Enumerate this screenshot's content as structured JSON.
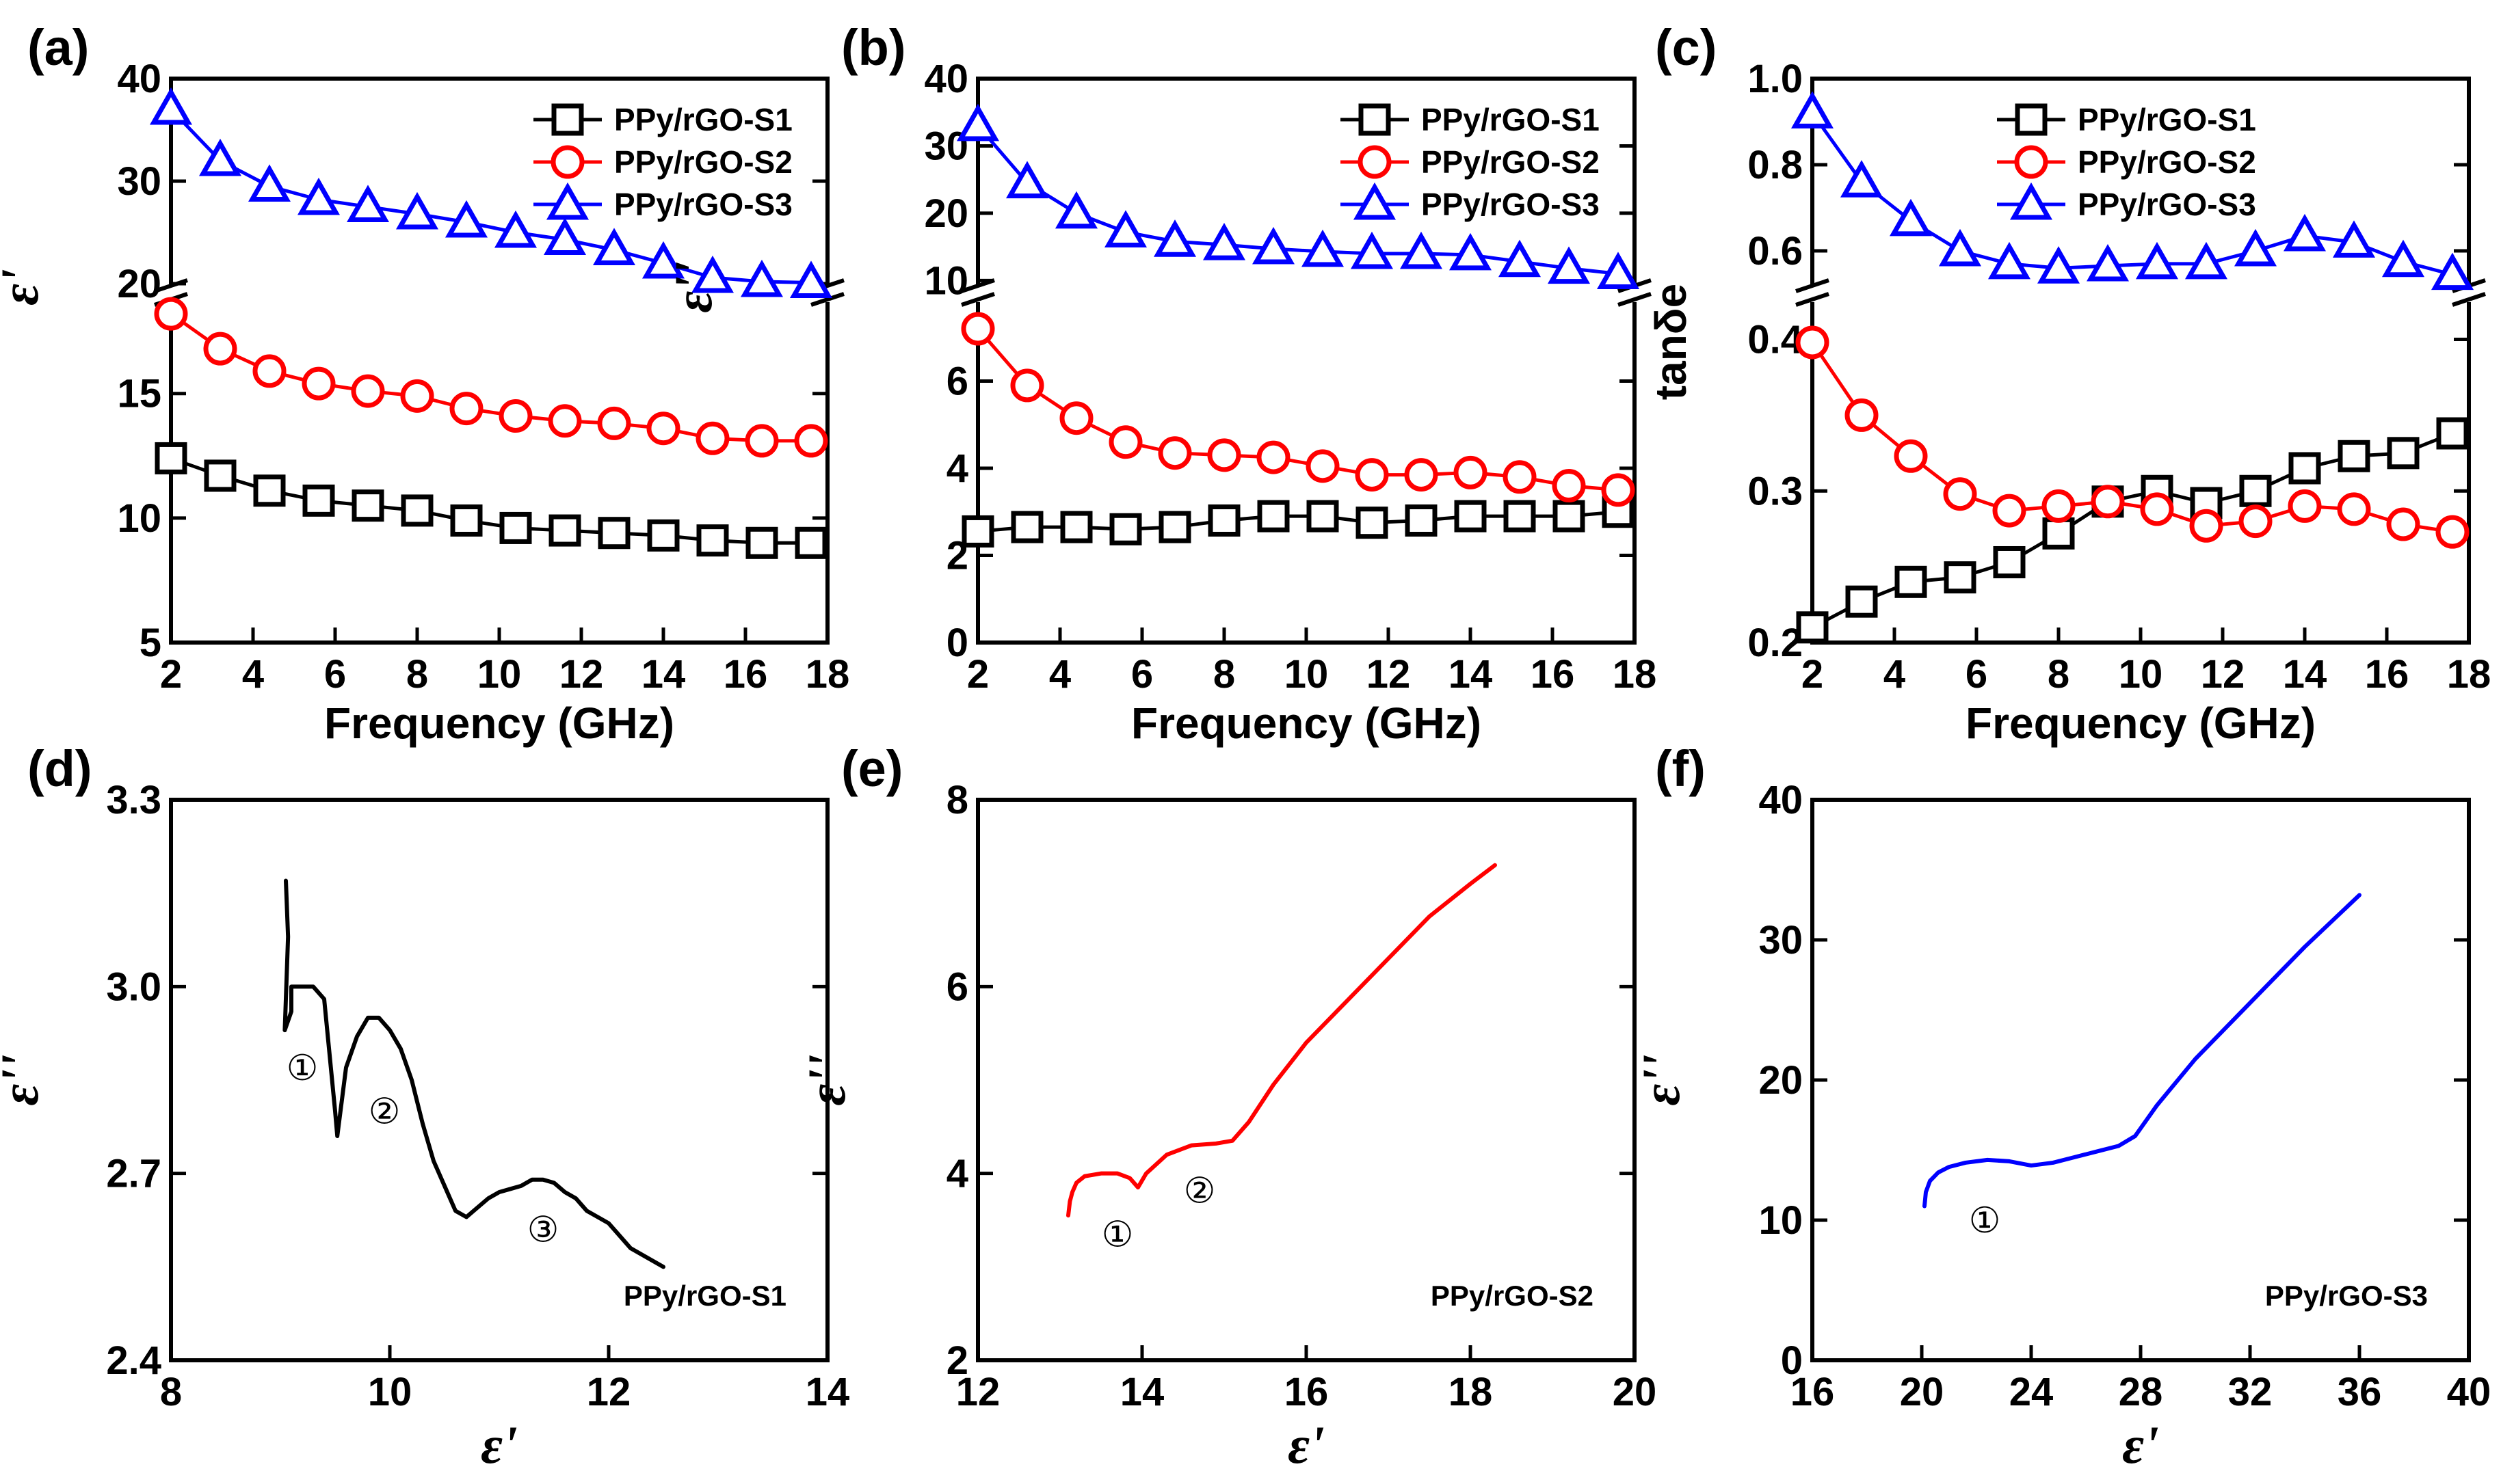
{
  "chart_data": [
    {
      "panel": "(a)",
      "type": "line",
      "xlabel": "Frequency (GHz)",
      "ylabel": "ε'",
      "xlim": [
        2,
        18
      ],
      "xticks": [
        "2",
        "4",
        "6",
        "8",
        "10",
        "12",
        "14",
        "16",
        "18"
      ],
      "y_break": true,
      "ylim_lower": [
        5,
        19
      ],
      "ylim_upper": [
        19,
        40
      ],
      "yticks": [
        "5",
        "10",
        "15",
        "20",
        "30",
        "40"
      ],
      "legend": [
        "PPy/rGO-S1",
        "PPy/rGO-S2",
        "PPy/rGO-S3"
      ],
      "series": [
        {
          "name": "PPy/rGO-S1",
          "color": "#000000",
          "marker": "square",
          "x": [
            2,
            3.2,
            4.4,
            5.6,
            6.8,
            8,
            9.2,
            10.4,
            11.6,
            12.8,
            14,
            15.2,
            16.4,
            17.6
          ],
          "values": [
            12.4,
            11.7,
            11.1,
            10.7,
            10.5,
            10.3,
            9.9,
            9.6,
            9.5,
            9.4,
            9.3,
            9.1,
            9.0,
            9.0
          ]
        },
        {
          "name": "PPy/rGO-S2",
          "color": "#ff0000",
          "marker": "circle",
          "x": [
            2,
            3.2,
            4.4,
            5.6,
            6.8,
            8,
            9.2,
            10.4,
            11.6,
            12.8,
            14,
            15.2,
            16.4,
            17.6
          ],
          "values": [
            18.2,
            16.8,
            15.9,
            15.4,
            15.1,
            14.9,
            14.4,
            14.1,
            13.9,
            13.8,
            13.6,
            13.2,
            13.1,
            13.1
          ]
        },
        {
          "name": "PPy/rGO-S3",
          "color": "#0000ff",
          "marker": "triangle",
          "x": [
            2,
            3.2,
            4.4,
            5.6,
            6.8,
            8,
            9.2,
            10.4,
            11.6,
            12.8,
            14,
            15.2,
            16.4,
            17.6
          ],
          "values": [
            37,
            32,
            29.5,
            28.2,
            27.5,
            26.8,
            26,
            25,
            24.3,
            23.3,
            22,
            20.6,
            20.2,
            20.1
          ]
        }
      ]
    },
    {
      "panel": "(b)",
      "type": "line",
      "xlabel": "Frequency (GHz)",
      "ylabel": "ε''",
      "xlim": [
        2,
        18
      ],
      "xticks": [
        "2",
        "4",
        "6",
        "8",
        "10",
        "12",
        "14",
        "16",
        "18"
      ],
      "y_break": true,
      "ylim_lower": [
        0,
        8
      ],
      "ylim_upper": [
        8,
        40
      ],
      "yticks": [
        "0",
        "2",
        "4",
        "6",
        "10",
        "20",
        "30",
        "40"
      ],
      "legend": [
        "PPy/rGO-S1",
        "PPy/rGO-S2",
        "PPy/rGO-S3"
      ],
      "series": [
        {
          "name": "PPy/rGO-S1",
          "color": "#000000",
          "marker": "square",
          "x": [
            2,
            3.2,
            4.4,
            5.6,
            6.8,
            8,
            9.2,
            10.4,
            11.6,
            12.8,
            14,
            15.2,
            16.4,
            17.6
          ],
          "values": [
            2.55,
            2.65,
            2.65,
            2.6,
            2.65,
            2.8,
            2.9,
            2.9,
            2.75,
            2.8,
            2.9,
            2.9,
            2.9,
            3.0
          ]
        },
        {
          "name": "PPy/rGO-S2",
          "color": "#ff0000",
          "marker": "circle",
          "x": [
            2,
            3.2,
            4.4,
            5.6,
            6.8,
            8,
            9.2,
            10.4,
            11.6,
            12.8,
            14,
            15.2,
            16.4,
            17.6
          ],
          "values": [
            7.2,
            5.9,
            5.15,
            4.6,
            4.35,
            4.3,
            4.25,
            4.05,
            3.85,
            3.85,
            3.9,
            3.8,
            3.6,
            3.5
          ]
        },
        {
          "name": "PPy/rGO-S3",
          "color": "#0000ff",
          "marker": "triangle",
          "x": [
            2,
            3.2,
            4.4,
            5.6,
            6.8,
            8,
            9.2,
            10.4,
            11.6,
            12.8,
            14,
            15.2,
            16.4,
            17.6
          ],
          "values": [
            33,
            24.5,
            20,
            17.2,
            15.8,
            15.3,
            14.7,
            14.3,
            14,
            14,
            13.8,
            12.8,
            11.8,
            11
          ]
        }
      ]
    },
    {
      "panel": "(c)",
      "type": "line",
      "xlabel": "Frequency (GHz)",
      "ylabel": "tanδe",
      "xlim": [
        2,
        18
      ],
      "xticks": [
        "2",
        "4",
        "6",
        "8",
        "10",
        "12",
        "14",
        "16",
        "18"
      ],
      "y_break": true,
      "ylim_lower": [
        0.2,
        0.43
      ],
      "ylim_upper": [
        0.5,
        1.0
      ],
      "yticks": [
        "0.2",
        "0.3",
        "0.4",
        "0.6",
        "0.8",
        "1.0"
      ],
      "legend": [
        "PPy/rGO-S1",
        "PPy/rGO-S2",
        "PPy/rGO-S3"
      ],
      "series": [
        {
          "name": "PPy/rGO-S1",
          "color": "#000000",
          "marker": "square",
          "x": [
            2,
            3.2,
            4.4,
            5.6,
            6.8,
            8,
            9.2,
            10.4,
            11.6,
            12.8,
            14,
            15.2,
            16.4,
            17.6
          ],
          "values": [
            0.21,
            0.227,
            0.24,
            0.243,
            0.253,
            0.272,
            0.293,
            0.3,
            0.292,
            0.3,
            0.315,
            0.323,
            0.325,
            0.338
          ]
        },
        {
          "name": "PPy/rGO-S2",
          "color": "#ff0000",
          "marker": "circle",
          "x": [
            2,
            3.2,
            4.4,
            5.6,
            6.8,
            8,
            9.2,
            10.4,
            11.6,
            12.8,
            14,
            15.2,
            16.4,
            17.6
          ],
          "values": [
            0.398,
            0.35,
            0.323,
            0.298,
            0.287,
            0.29,
            0.293,
            0.288,
            0.277,
            0.28,
            0.29,
            0.288,
            0.278,
            0.273
          ]
        },
        {
          "name": "PPy/rGO-S3",
          "color": "#0000ff",
          "marker": "triangle",
          "x": [
            2,
            3.2,
            4.4,
            5.6,
            6.8,
            8,
            9.2,
            10.4,
            11.6,
            12.8,
            14,
            15.2,
            16.4,
            17.6
          ],
          "values": [
            0.92,
            0.76,
            0.67,
            0.6,
            0.57,
            0.56,
            0.565,
            0.57,
            0.57,
            0.6,
            0.635,
            0.62,
            0.575,
            0.545
          ]
        }
      ]
    },
    {
      "panel": "(d)",
      "type": "line",
      "xlabel": "ε'",
      "ylabel": "ε''",
      "xlim": [
        8,
        14
      ],
      "ylim": [
        2.4,
        3.3
      ],
      "xticks": [
        "8",
        "10",
        "12",
        "14"
      ],
      "yticks": [
        "2.4",
        "2.7",
        "3.0",
        "3.3"
      ],
      "label": "PPy/rGO-S1",
      "color": "#000000",
      "annotations": [
        {
          "text": "①",
          "x": 9.2,
          "y": 2.87
        },
        {
          "text": "②",
          "x": 9.95,
          "y": 2.8
        },
        {
          "text": "③",
          "x": 11.4,
          "y": 2.61
        }
      ],
      "x": [
        9.05,
        9.07,
        9.04,
        9.1,
        9.1,
        9.2,
        9.3,
        9.4,
        9.5,
        9.52,
        9.6,
        9.7,
        9.8,
        9.9,
        10.0,
        10.1,
        10.2,
        10.3,
        10.4,
        10.5,
        10.6,
        10.7,
        10.8,
        10.9,
        11.0,
        11.1,
        11.2,
        11.3,
        11.4,
        11.5,
        11.6,
        11.7,
        11.8,
        11.9,
        12.0,
        12.1,
        12.2,
        12.3,
        12.4,
        12.5
      ],
      "values": [
        3.17,
        3.08,
        2.93,
        2.96,
        3.0,
        3.0,
        3.0,
        2.98,
        2.8,
        2.76,
        2.87,
        2.92,
        2.95,
        2.95,
        2.93,
        2.9,
        2.85,
        2.78,
        2.72,
        2.68,
        2.64,
        2.63,
        2.645,
        2.66,
        2.67,
        2.675,
        2.68,
        2.69,
        2.69,
        2.685,
        2.67,
        2.66,
        2.64,
        2.63,
        2.62,
        2.6,
        2.58,
        2.57,
        2.56,
        2.55
      ]
    },
    {
      "panel": "(e)",
      "type": "line",
      "xlabel": "ε'",
      "ylabel": "ε''",
      "xlim": [
        12,
        20
      ],
      "ylim": [
        2,
        8
      ],
      "xticks": [
        "12",
        "14",
        "16",
        "18",
        "20"
      ],
      "yticks": [
        "2",
        "4",
        "6",
        "8"
      ],
      "label": "PPy/rGO-S2",
      "color": "#ff0000",
      "annotations": [
        {
          "text": "①",
          "x": 13.7,
          "y": 3.35
        },
        {
          "text": "②",
          "x": 14.7,
          "y": 3.82
        }
      ],
      "x": [
        13.1,
        13.12,
        13.15,
        13.2,
        13.3,
        13.5,
        13.7,
        13.85,
        13.95,
        14.05,
        14.3,
        14.6,
        14.9,
        15.1,
        15.3,
        15.6,
        16.0,
        16.5,
        17.0,
        17.5,
        18.0,
        18.3
      ],
      "values": [
        3.55,
        3.7,
        3.8,
        3.9,
        3.97,
        4.0,
        4.0,
        3.95,
        3.85,
        4.0,
        4.2,
        4.3,
        4.32,
        4.35,
        4.55,
        4.95,
        5.4,
        5.85,
        6.3,
        6.75,
        7.1,
        7.3
      ]
    },
    {
      "panel": "(f)",
      "type": "line",
      "xlabel": "ε'",
      "ylabel": "ε''",
      "xlim": [
        16,
        40
      ],
      "ylim": [
        0,
        40
      ],
      "xticks": [
        "16",
        "20",
        "24",
        "28",
        "32",
        "36",
        "40"
      ],
      "yticks": [
        "0",
        "10",
        "20",
        "30",
        "40"
      ],
      "label": "PPy/rGO-S3",
      "color": "#0000ff",
      "annotations": [
        {
          "text": "①",
          "x": 22.3,
          "y": 10
        }
      ],
      "x": [
        20.1,
        20.15,
        20.3,
        20.6,
        21.0,
        21.6,
        22.4,
        23.2,
        24.0,
        24.8,
        25.6,
        26.4,
        27.2,
        27.8,
        28.6,
        30.0,
        32.0,
        34.0,
        36.0
      ],
      "values": [
        11,
        12,
        12.8,
        13.4,
        13.8,
        14.1,
        14.3,
        14.2,
        13.9,
        14.1,
        14.5,
        14.9,
        15.3,
        16,
        18.2,
        21.5,
        25.5,
        29.5,
        33.2
      ]
    }
  ]
}
